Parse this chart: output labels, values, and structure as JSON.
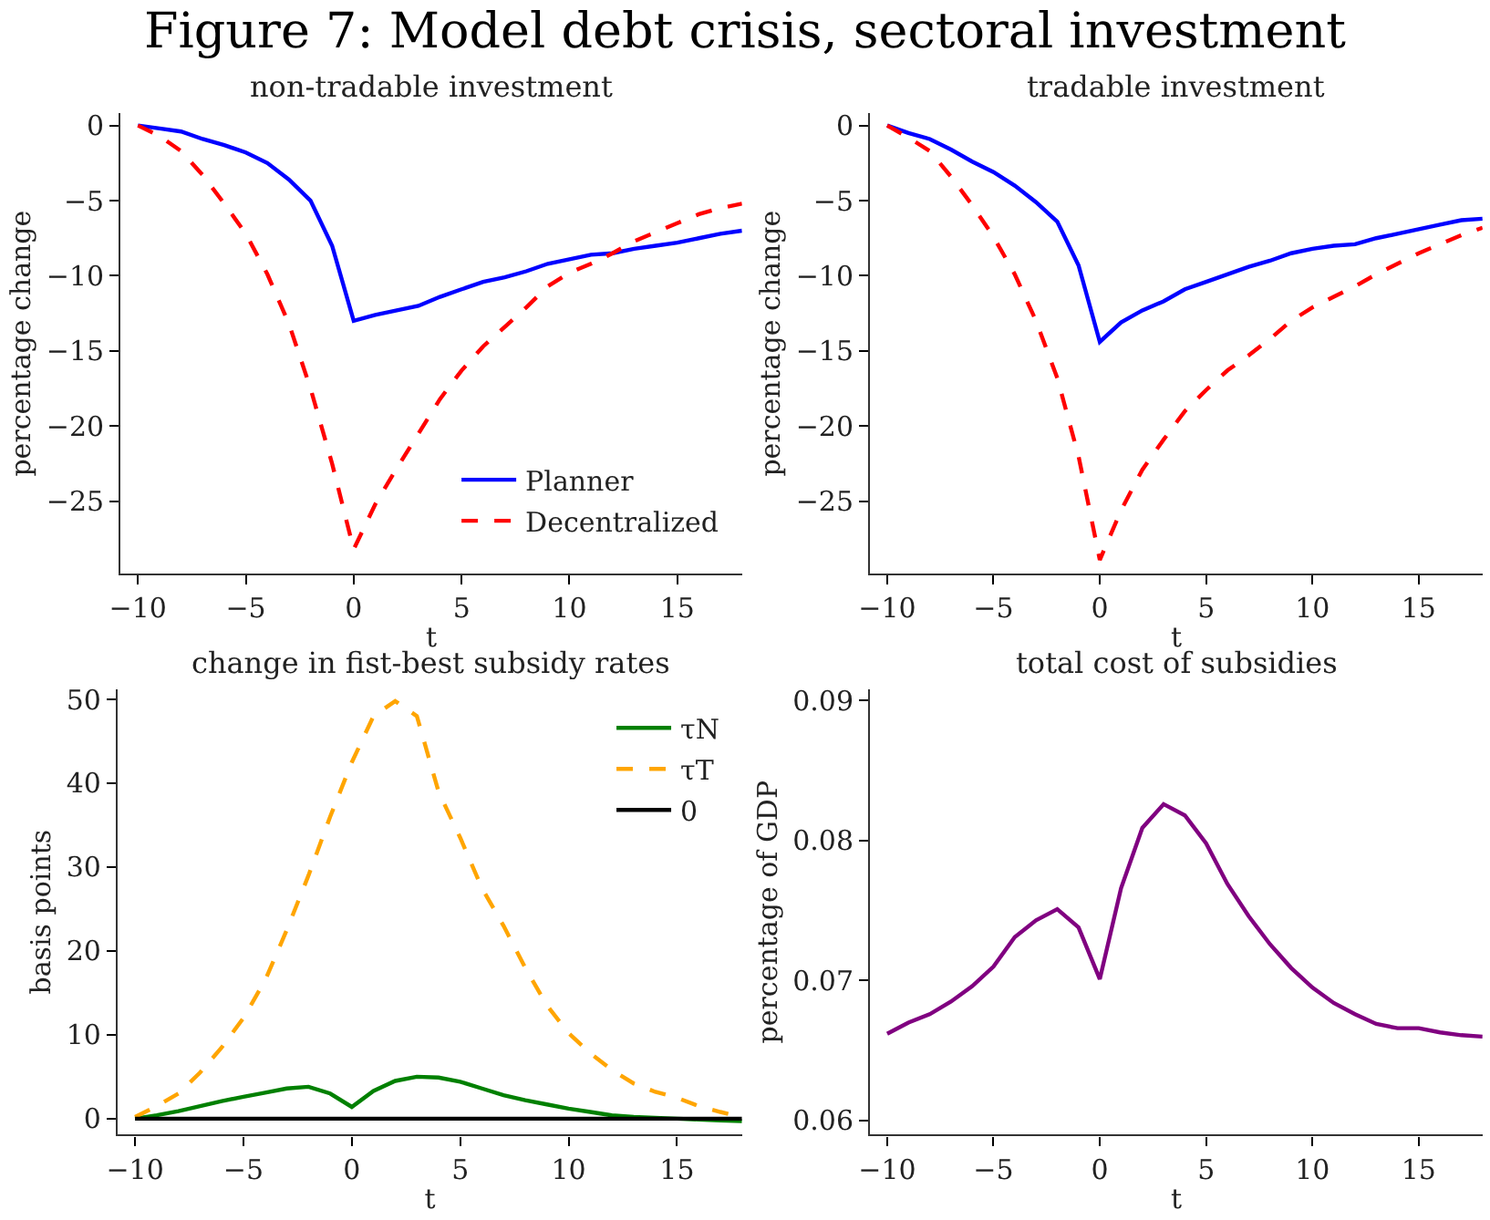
{
  "chart_data": [
    {
      "type": "line",
      "title": "non-tradable investment",
      "xlabel": "t",
      "ylabel": "percentage change",
      "annotations": [
        "Figure 7: Model debt crisis, sectoral investment"
      ],
      "x": [
        -10,
        -9,
        -8,
        -7,
        -6,
        -5,
        -4,
        -3,
        -2,
        -1,
        0,
        1,
        2,
        3,
        4,
        5,
        6,
        7,
        8,
        9,
        10,
        11,
        12,
        13,
        14,
        15,
        16,
        17,
        18
      ],
      "series": [
        {
          "name": "Planner",
          "color": "#0000ff",
          "line_style": "solid",
          "values": [
            0,
            -0.2,
            -0.4,
            -0.9,
            -1.3,
            -1.8,
            -2.5,
            -3.6,
            -5.0,
            -8.0,
            -13.0,
            -12.6,
            -12.3,
            -12.0,
            -11.4,
            -10.9,
            -10.4,
            -10.1,
            -9.7,
            -9.2,
            -8.9,
            -8.6,
            -8.5,
            -8.2,
            -8.0,
            -7.8,
            -7.5,
            -7.2,
            -7.0
          ]
        },
        {
          "name": "Decentralized",
          "color": "#ff0000",
          "line_style": "dashed",
          "values": [
            0,
            -0.7,
            -1.7,
            -3.3,
            -5.2,
            -7.2,
            -9.9,
            -13.2,
            -17.5,
            -22.5,
            -28.2,
            -25.2,
            -22.8,
            -20.5,
            -18.2,
            -16.3,
            -14.7,
            -13.4,
            -12.1,
            -10.7,
            -9.8,
            -9.2,
            -8.5,
            -7.7,
            -7.1,
            -6.5,
            -5.9,
            -5.5,
            -5.2
          ]
        }
      ],
      "xlim": [
        -10.8,
        18
      ],
      "xticks": [
        -10,
        -5,
        0,
        5,
        10,
        15
      ],
      "ylim": [
        -29.8,
        0.8
      ],
      "yticks": [
        0,
        -5,
        -10,
        -15,
        -20,
        -25
      ],
      "legend": "bottom right"
    },
    {
      "type": "line",
      "title": "tradable investment",
      "xlabel": "t",
      "ylabel": "percentage change",
      "x": [
        -10,
        -9,
        -8,
        -7,
        -6,
        -5,
        -4,
        -3,
        -2,
        -1,
        0,
        1,
        2,
        3,
        4,
        5,
        6,
        7,
        8,
        9,
        10,
        11,
        12,
        13,
        14,
        15,
        16,
        17,
        18
      ],
      "series": [
        {
          "color": "#0000ff",
          "line_style": "solid",
          "values": [
            0,
            -0.5,
            -0.9,
            -1.6,
            -2.4,
            -3.1,
            -4.0,
            -5.1,
            -6.4,
            -9.3,
            -14.4,
            -13.1,
            -12.3,
            -11.7,
            -10.9,
            -10.4,
            -9.9,
            -9.4,
            -9.0,
            -8.5,
            -8.2,
            -8.0,
            -7.9,
            -7.5,
            -7.2,
            -6.9,
            -6.6,
            -6.3,
            -6.2
          ]
        },
        {
          "color": "#ff0000",
          "line_style": "dashed",
          "values": [
            0,
            -0.8,
            -1.7,
            -3.4,
            -5.3,
            -7.4,
            -9.9,
            -13.0,
            -16.8,
            -22.0,
            -28.9,
            -25.6,
            -22.9,
            -20.9,
            -19.0,
            -17.6,
            -16.3,
            -15.3,
            -14.2,
            -13.0,
            -12.1,
            -11.4,
            -10.7,
            -9.9,
            -9.2,
            -8.5,
            -7.9,
            -7.3,
            -6.8
          ]
        }
      ],
      "xlim": [
        -10.8,
        18
      ],
      "xticks": [
        -10,
        -5,
        0,
        5,
        10,
        15
      ],
      "ylim": [
        -29.8,
        0.8
      ],
      "yticks": [
        0,
        -5,
        -10,
        -15,
        -20,
        -25
      ],
      "legend": false
    },
    {
      "type": "line",
      "title": "change in fist-best subsidy rates",
      "xlabel": "t",
      "ylabel": "basis points",
      "x": [
        -10,
        -9,
        -8,
        -7,
        -6,
        -5,
        -4,
        -3,
        -2,
        -1,
        0,
        1,
        2,
        3,
        4,
        5,
        6,
        7,
        8,
        9,
        10,
        11,
        12,
        13,
        14,
        15,
        16,
        17,
        18
      ],
      "series": [
        {
          "name": "τN",
          "color": "#008000",
          "line_style": "solid",
          "values": [
            0,
            0.4,
            0.9,
            1.5,
            2.1,
            2.6,
            3.1,
            3.6,
            3.8,
            3.0,
            1.4,
            3.3,
            4.5,
            5.0,
            4.9,
            4.4,
            3.6,
            2.8,
            2.2,
            1.7,
            1.2,
            0.8,
            0.4,
            0.2,
            0.1,
            0.0,
            -0.1,
            -0.2,
            -0.3
          ]
        },
        {
          "name": "τT",
          "color": "#ffa500",
          "line_style": "dashed",
          "values": [
            0.2,
            1.5,
            3.0,
            5.5,
            8.5,
            12,
            16.5,
            22.5,
            29,
            36,
            42.5,
            48,
            49.8,
            48,
            39,
            33.5,
            27.5,
            23,
            18,
            13.5,
            10.2,
            7.8,
            5.8,
            4.2,
            3.2,
            2.5,
            1.5,
            0.8,
            0.2
          ]
        },
        {
          "name": "0",
          "color": "#000000",
          "line_style": "solid",
          "values": [
            0,
            0,
            0,
            0,
            0,
            0,
            0,
            0,
            0,
            0,
            0,
            0,
            0,
            0,
            0,
            0,
            0,
            0,
            0,
            0,
            0,
            0,
            0,
            0,
            0,
            0,
            0,
            0,
            0
          ]
        }
      ],
      "xlim": [
        -10.8,
        18
      ],
      "xticks": [
        -10,
        -5,
        0,
        5,
        10,
        15
      ],
      "ylim": [
        -1.9,
        51.2
      ],
      "yticks": [
        0,
        10,
        20,
        30,
        40,
        50
      ],
      "legend": "top right"
    },
    {
      "type": "line",
      "title": "total cost of subsidies",
      "xlabel": "t",
      "ylabel": "percentage of GDP",
      "x": [
        -10,
        -9,
        -8,
        -7,
        -6,
        -5,
        -4,
        -3,
        -2,
        -1,
        0,
        1,
        2,
        3,
        4,
        5,
        6,
        7,
        8,
        9,
        10,
        11,
        12,
        13,
        14,
        15,
        16,
        17,
        18
      ],
      "series": [
        {
          "color": "#800080",
          "line_style": "solid",
          "values": [
            0.0662,
            0.067,
            0.0676,
            0.0685,
            0.0696,
            0.071,
            0.0731,
            0.0743,
            0.0751,
            0.0738,
            0.0701,
            0.0766,
            0.0809,
            0.0826,
            0.0818,
            0.0798,
            0.0769,
            0.0746,
            0.0726,
            0.0709,
            0.0695,
            0.0684,
            0.0676,
            0.0669,
            0.0666,
            0.0666,
            0.0663,
            0.0661,
            0.066
          ]
        }
      ],
      "xlim": [
        -10.8,
        18
      ],
      "xticks": [
        -10,
        -5,
        0,
        5,
        10,
        15
      ],
      "ylim": [
        0.059,
        0.0908
      ],
      "yticks": [
        0.06,
        0.07,
        0.08,
        0.09
      ],
      "legend": false
    }
  ]
}
